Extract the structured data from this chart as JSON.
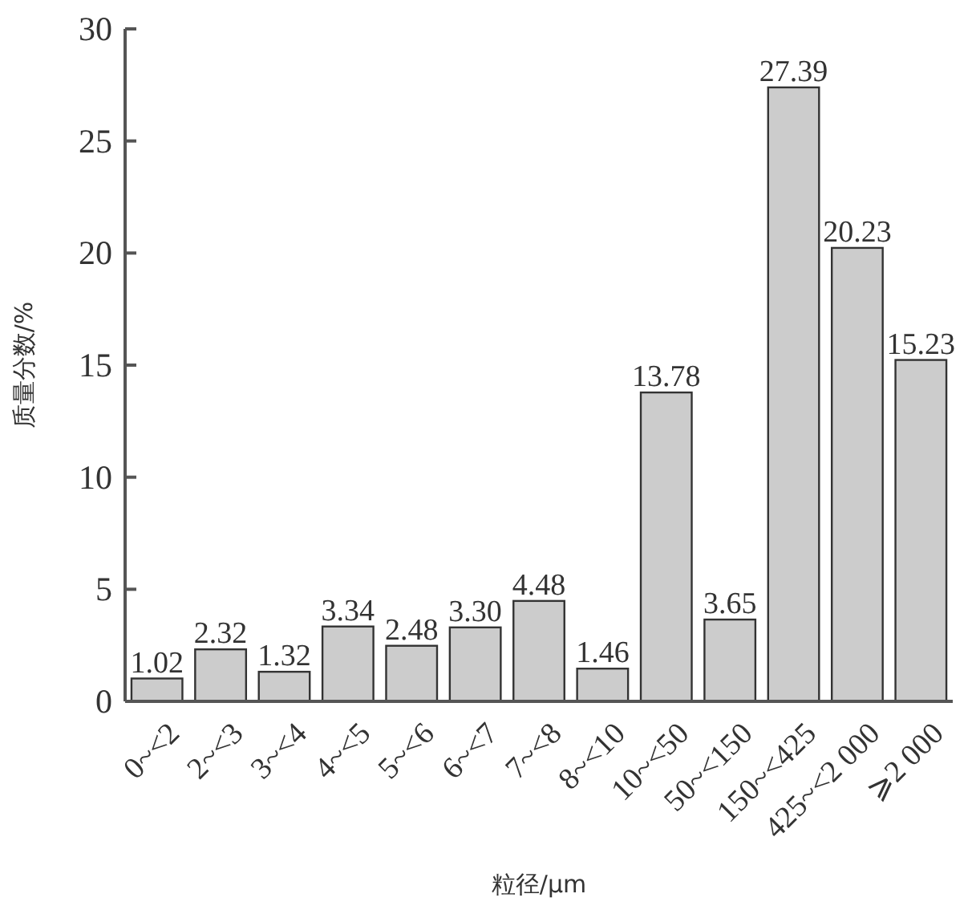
{
  "chart_data": {
    "type": "bar",
    "xlabel": "粒径/μm",
    "ylabel": "质量分数/%",
    "categories": [
      "0~<2",
      "2~<3",
      "3~<4",
      "4~<5",
      "5~<6",
      "6~<7",
      "7~<8",
      "8~<10",
      "10~<50",
      "50~<150",
      "150~<425",
      "425~<2 000",
      "⩾2 000"
    ],
    "values": [
      1.02,
      2.32,
      1.32,
      3.34,
      2.48,
      3.3,
      4.48,
      1.46,
      13.78,
      3.65,
      27.39,
      20.23,
      15.23
    ],
    "value_labels": [
      "1.02",
      "2.32",
      "1.32",
      "3.34",
      "2.48",
      "3.30",
      "4.48",
      "1.46",
      "13.78",
      "3.65",
      "27.39",
      "20.23",
      "15.23"
    ],
    "color": "#cccccc",
    "ylim": [
      0,
      30
    ],
    "yticks": [
      0,
      5,
      10,
      15,
      20,
      25,
      30
    ],
    "grid": false
  }
}
